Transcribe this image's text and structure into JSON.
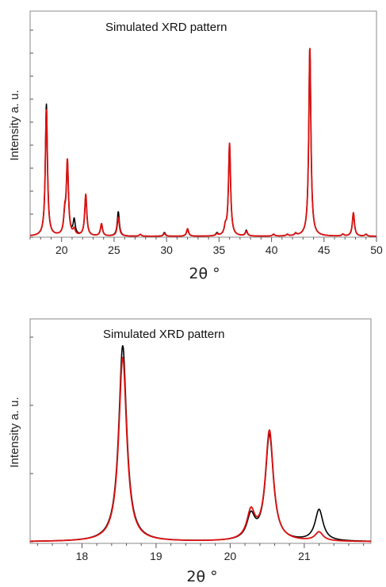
{
  "chart_data": [
    {
      "type": "line",
      "title": "Simulated XRD pattern",
      "xlabel": "2θ °",
      "ylabel": "Intensity a. u.",
      "xlim": [
        17,
        50
      ],
      "xticks": [
        20,
        25,
        30,
        35,
        40,
        45,
        50
      ],
      "ylim": [
        0,
        100
      ],
      "grid": false,
      "colors": {
        "series_a": "#000000",
        "series_b": "#dd1111"
      },
      "series": [
        {
          "color": "#000000",
          "peaks": [
            [
              18.55,
              70
            ],
            [
              20.3,
              9
            ],
            [
              20.55,
              38
            ],
            [
              21.2,
              8
            ],
            [
              22.3,
              21
            ],
            [
              23.8,
              6
            ],
            [
              25.4,
              13
            ],
            [
              27.5,
              1
            ],
            [
              29.8,
              2
            ],
            [
              32.0,
              3.5
            ],
            [
              34.8,
              1.5
            ],
            [
              35.6,
              4
            ],
            [
              36.0,
              48
            ],
            [
              37.6,
              3
            ],
            [
              40.2,
              1
            ],
            [
              41.5,
              0.8
            ],
            [
              42.3,
              1.2
            ],
            [
              43.65,
              100
            ],
            [
              46.8,
              1
            ],
            [
              47.8,
              12
            ],
            [
              49.0,
              1
            ]
          ],
          "width": 0.12
        },
        {
          "color": "#dd1111",
          "peaks": [
            [
              18.55,
              67
            ],
            [
              20.3,
              10
            ],
            [
              20.55,
              39
            ],
            [
              21.2,
              3
            ],
            [
              22.3,
              22
            ],
            [
              23.8,
              6.5
            ],
            [
              25.4,
              10
            ],
            [
              27.5,
              1
            ],
            [
              29.8,
              1.5
            ],
            [
              32.0,
              4
            ],
            [
              34.8,
              1
            ],
            [
              35.6,
              4
            ],
            [
              36.0,
              49
            ],
            [
              37.6,
              2.5
            ],
            [
              40.2,
              1
            ],
            [
              41.5,
              0.8
            ],
            [
              42.3,
              1
            ],
            [
              43.65,
              100
            ],
            [
              46.8,
              1
            ],
            [
              47.8,
              12.5
            ],
            [
              49.0,
              1
            ]
          ],
          "width": 0.12
        }
      ]
    },
    {
      "type": "line",
      "title": "Simulated XRD pattern",
      "xlabel": "2θ °",
      "ylabel": "Intensity a. u.",
      "xlim": [
        17.3,
        21.9
      ],
      "xticks": [
        18,
        19,
        20,
        21
      ],
      "ylim": [
        0,
        100
      ],
      "grid": false,
      "colors": {
        "series_a": "#000000",
        "series_b": "#dd1111"
      },
      "series": [
        {
          "color": "#000000",
          "peaks": [
            [
              18.55,
              100
            ],
            [
              20.28,
              12
            ],
            [
              20.53,
              54
            ],
            [
              21.2,
              16
            ]
          ],
          "width": 0.065
        },
        {
          "color": "#dd1111",
          "peaks": [
            [
              18.55,
              94
            ],
            [
              20.28,
              14
            ],
            [
              20.53,
              56
            ],
            [
              21.2,
              4.5
            ]
          ],
          "width": 0.065
        }
      ]
    }
  ]
}
